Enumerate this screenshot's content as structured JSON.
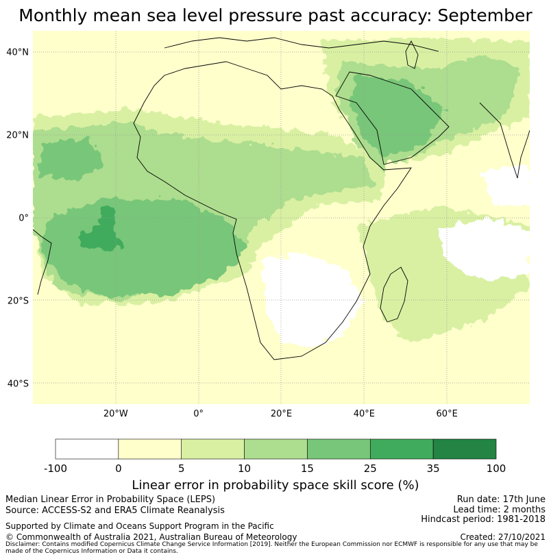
{
  "title": "Monthly mean sea level pressure past accuracy: September",
  "map": {
    "lat_labels": [
      {
        "lat": 40,
        "text": "40°N"
      },
      {
        "lat": 20,
        "text": "20°N"
      },
      {
        "lat": 0,
        "text": "0°"
      },
      {
        "lat": -20,
        "text": "20°S"
      },
      {
        "lat": -40,
        "text": "40°S"
      }
    ],
    "lon_labels": [
      {
        "lon": -20,
        "text": "20°W"
      },
      {
        "lon": 0,
        "text": "0°"
      },
      {
        "lon": 20,
        "text": "20°E"
      },
      {
        "lon": 40,
        "text": "40°E"
      },
      {
        "lon": 60,
        "text": "60°E"
      }
    ],
    "extent": {
      "lon": [
        -40,
        80
      ],
      "lat": [
        -45,
        45
      ]
    }
  },
  "colorbar": {
    "ticks": [
      "-100",
      "0",
      "5",
      "10",
      "15",
      "25",
      "35",
      "100"
    ],
    "colors": [
      "#ffffff",
      "#ffffcc",
      "#d9f0a3",
      "#addd8e",
      "#78c679",
      "#41ab5d",
      "#238443"
    ],
    "title": "Linear error in probability space skill score (%)"
  },
  "footer": {
    "left": [
      "Median Linear Error in Probability Space (LEPS)",
      "Source: ACCESS-S2 and ERA5 Climate Reanalysis"
    ],
    "right": [
      "Run date: 17th June",
      "Lead time: 2 months",
      "Hindcast period: 1981-2018"
    ],
    "support": "Supported by Climate and Oceans Support Program in the Pacific",
    "copyright": "© Commonwealth of Australia 2021, Australian Bureau of Meteorology",
    "created": "Created: 27/10/2021",
    "disclaimer": "Disclaimer: Contains modified Copernicus Climate Change Service Information [2019]. Neither the European Commission nor ECMWF is responsible for any use that may be made of the Copernicus Information or Data it contains."
  }
}
